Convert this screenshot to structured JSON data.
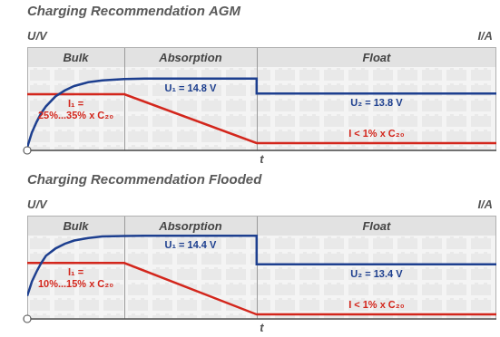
{
  "chart_data": [
    {
      "type": "line",
      "title": "Charging Recommendation AGM",
      "xlabel": "t",
      "ylabel": "U/V",
      "y2label": "I/A",
      "xlim": [
        0,
        100
      ],
      "ylim": [
        10,
        16.9
      ],
      "y2lim": [
        -3.3,
        57.9
      ],
      "tick_labels": false,
      "grid": false,
      "phases": [
        {
          "name": "Bulk",
          "start": 0,
          "end": 20.7
        },
        {
          "name": "Absorption",
          "start": 20.7,
          "end": 48.9
        },
        {
          "name": "Float",
          "start": 48.9,
          "end": 100
        }
      ],
      "series": [
        {
          "color": "#1d3f8f",
          "axis": "y",
          "x": [
            0,
            1,
            2,
            3,
            4,
            6,
            8,
            10,
            13,
            16,
            20.7,
            25,
            48.9,
            48.9,
            100
          ],
          "values": [
            10.2,
            11.2,
            11.9,
            12.5,
            12.95,
            13.6,
            14.0,
            14.3,
            14.55,
            14.68,
            14.76,
            14.8,
            14.8,
            13.8,
            13.8
          ]
        },
        {
          "color": "#d3261c",
          "axis": "y2",
          "x": [
            0,
            20.7,
            48.9,
            100
          ],
          "values": [
            30,
            30,
            1,
            1
          ]
        }
      ],
      "annotations": [
        {
          "text": "U₁ = 14.8 V",
          "phase": "Absorption",
          "axis": "y",
          "value": 14.8,
          "color": "#1d3f8f"
        },
        {
          "text": "U₂ = 13.8 V",
          "phase": "Float",
          "axis": "y",
          "value": 13.8,
          "color": "#1d3f8f"
        },
        {
          "text": [
            "I₁ =",
            "25%...35% x C₂₀"
          ],
          "phase": "Bulk",
          "axis": "y2",
          "value": 30,
          "color": "#d3261c"
        },
        {
          "text": "I < 1% x C₂₀",
          "phase": "Float",
          "axis": "y2",
          "value": 1,
          "color": "#d3261c"
        }
      ]
    },
    {
      "type": "line",
      "title": "Charging Recommendation Flooded",
      "xlabel": "t",
      "ylabel": "U/V",
      "y2label": "I/A",
      "xlim": [
        0,
        100
      ],
      "ylim": [
        11.5,
        15.1
      ],
      "y2lim": [
        0,
        23.1
      ],
      "tick_labels": false,
      "grid": false,
      "phases": [
        {
          "name": "Bulk",
          "start": 0,
          "end": 20.7
        },
        {
          "name": "Absorption",
          "start": 20.7,
          "end": 48.9
        },
        {
          "name": "Float",
          "start": 48.9,
          "end": 100
        }
      ],
      "series": [
        {
          "color": "#1d3f8f",
          "axis": "y",
          "x": [
            0,
            1,
            2,
            3,
            4,
            6,
            8,
            10,
            13,
            16,
            20.7,
            25,
            48.9,
            48.9,
            100
          ],
          "values": [
            12.3,
            12.8,
            13.15,
            13.45,
            13.7,
            13.95,
            14.12,
            14.23,
            14.32,
            14.37,
            14.39,
            14.4,
            14.4,
            13.4,
            13.4
          ]
        },
        {
          "color": "#d3261c",
          "axis": "y2",
          "x": [
            0,
            20.7,
            48.9,
            100
          ],
          "values": [
            12.5,
            12.5,
            1,
            1
          ]
        }
      ],
      "annotations": [
        {
          "text": "U₁ = 14.4 V",
          "phase": "Absorption",
          "axis": "y",
          "value": 14.4,
          "color": "#1d3f8f"
        },
        {
          "text": "U₂ = 13.4 V",
          "phase": "Float",
          "axis": "y",
          "value": 13.4,
          "color": "#1d3f8f"
        },
        {
          "text": [
            "I₁ =",
            "10%...15% x C₂₀"
          ],
          "phase": "Bulk",
          "axis": "y2",
          "value": 12.5,
          "color": "#d3261c"
        },
        {
          "text": "I < 1% x C₂₀",
          "phase": "Float",
          "axis": "y2",
          "value": 1,
          "color": "#d3261c"
        }
      ]
    }
  ]
}
